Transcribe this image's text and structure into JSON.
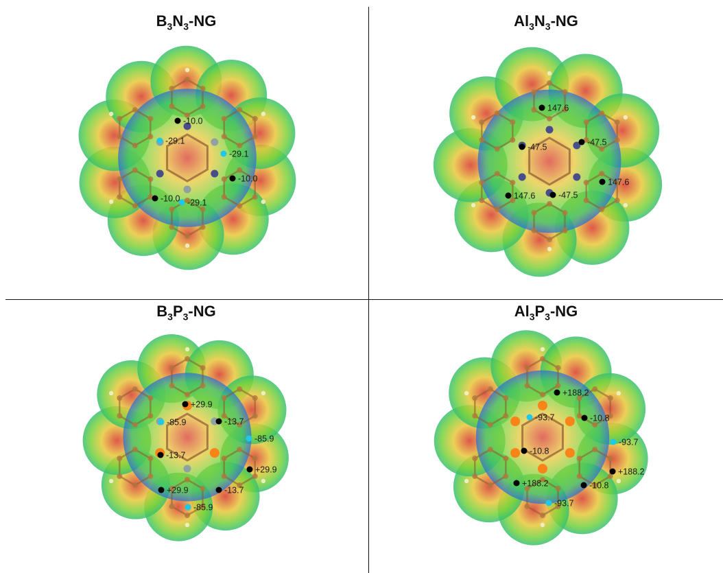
{
  "panels": [
    {
      "id": "b3n3",
      "title": {
        "p1": "B",
        "s1": "3",
        "p2": "N",
        "s2": "3",
        "p3": "-NG"
      },
      "points": [
        {
          "kind": "black",
          "value": "-10.0"
        },
        {
          "kind": "cyan",
          "value": "-29.1"
        },
        {
          "kind": "cyan",
          "value": "-29.1"
        },
        {
          "kind": "black",
          "value": "-10.0"
        },
        {
          "kind": "black",
          "value": "-10.0"
        },
        {
          "kind": "cyan",
          "value": "-29.1"
        }
      ]
    },
    {
      "id": "al3n3",
      "title": {
        "p1": "Al",
        "s1": "3",
        "p2": "N",
        "s2": "3",
        "p3": "-NG"
      },
      "points": [
        {
          "kind": "black",
          "value": "147.6"
        },
        {
          "kind": "black",
          "value": "-47.5"
        },
        {
          "kind": "black",
          "value": "-47.5"
        },
        {
          "kind": "black",
          "value": "147.6"
        },
        {
          "kind": "black",
          "value": "147.6"
        },
        {
          "kind": "black",
          "value": "-47.5"
        }
      ]
    },
    {
      "id": "b3p3",
      "title": {
        "p1": "B",
        "s1": "3",
        "p2": "P",
        "s2": "3",
        "p3": "-NG"
      },
      "points": [
        {
          "kind": "black",
          "value": "+29.9"
        },
        {
          "kind": "cyan",
          "value": "-85.9"
        },
        {
          "kind": "black",
          "value": "-13.7"
        },
        {
          "kind": "cyan",
          "value": "-85.9"
        },
        {
          "kind": "black",
          "value": "-13.7"
        },
        {
          "kind": "black",
          "value": "+29.9"
        },
        {
          "kind": "black",
          "value": "+29.9"
        },
        {
          "kind": "black",
          "value": "-13.7"
        },
        {
          "kind": "cyan",
          "value": "-85.9"
        }
      ]
    },
    {
      "id": "al3p3",
      "title": {
        "p1": "Al",
        "s1": "3",
        "p2": "P",
        "s2": "3",
        "p3": "-NG"
      },
      "points": [
        {
          "kind": "black",
          "value": "+188.2"
        },
        {
          "kind": "cyan",
          "value": "-93.7"
        },
        {
          "kind": "black",
          "value": "-10.8"
        },
        {
          "kind": "cyan",
          "value": "-93.7"
        },
        {
          "kind": "black",
          "value": "-10.8"
        },
        {
          "kind": "black",
          "value": "+188.2"
        },
        {
          "kind": "black",
          "value": "+188.2"
        },
        {
          "kind": "black",
          "value": "-10.8"
        },
        {
          "kind": "cyan",
          "value": "-93.7"
        }
      ]
    }
  ],
  "colors": {
    "surface_edge": "#2f6fd6",
    "surface_mid": "#38c070",
    "surface_green": "#78d23c",
    "surface_yellow": "#e8c83a",
    "surface_red": "#d83a2a",
    "atom": "#b0783c",
    "hydrogen": "#f2f2c8",
    "nitrogen": "#3a3f8f",
    "boron": "#8a9aa8",
    "phosphorus": "#ff7a10",
    "cyan_point": "#20c8e8",
    "black_point": "#000000"
  }
}
